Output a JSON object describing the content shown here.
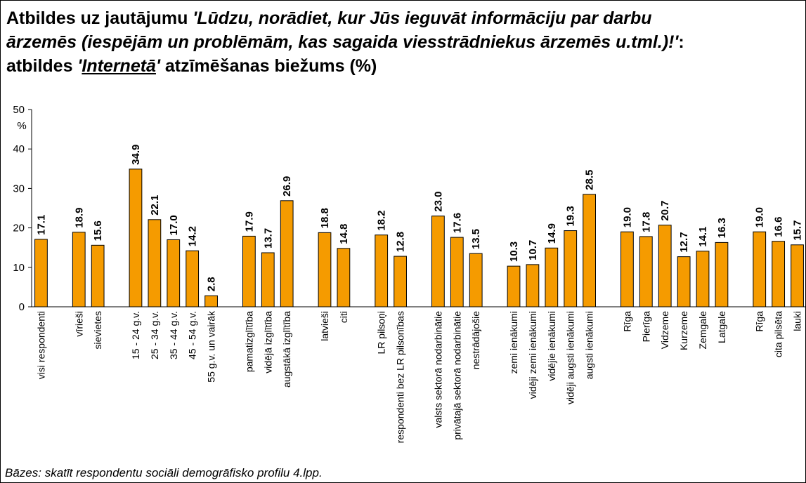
{
  "chart_data": {
    "type": "bar",
    "title": [
      "Atbildes uz jautājumu ",
      "'Lūdzu, norādiet, kur Jūs ieguvāt informāciju par darbu ārzemēs (iespējām un problēmām, kas sagaida viesstrādniekus ārzemēs u.tml.)!'",
      ": atbildes ",
      "'",
      "Internetā",
      "'",
      " atzīmēšanas biežums (%)"
    ],
    "y_axis_label": "%",
    "footnote": "Bāzes: skatīt respondentu sociāli demogrāfisko profilu 4.lpp.",
    "categories": [
      "visi respondenti",
      null,
      "vīrieši",
      "sievietes",
      null,
      "15 - 24 g.v.",
      "25 - 34 g.v.",
      "35 - 44 g.v.",
      "45 - 54 g.v.",
      "55 g.v. un vairāk",
      null,
      "pamatizglītība",
      "vidējā izglītība",
      "augstākā izglītība",
      null,
      "latvieši",
      "citi",
      null,
      "LR pilsoņi",
      "respondenti bez LR pilsonības",
      null,
      "valsts sektorā nodarbinātie",
      "privātajā sektorā nodarbinātie",
      "nestrādājošie",
      null,
      "zemi ienākumi",
      "vidēji zemi ienākumi",
      "vidējie ienākumi",
      "vidēji augsti ienākumi",
      "augsti ienākumi",
      null,
      "Rīga",
      "Pierīga",
      "Vidzeme",
      "Kurzeme",
      "Zemgale",
      "Latgale",
      null,
      "Rīga",
      "cita pilsēta",
      "lauki"
    ],
    "values": [
      17.1,
      null,
      18.9,
      15.6,
      null,
      34.9,
      22.1,
      17.0,
      14.2,
      2.8,
      null,
      17.9,
      13.7,
      26.9,
      null,
      18.8,
      14.8,
      null,
      18.2,
      12.8,
      null,
      23.0,
      17.6,
      13.5,
      null,
      10.3,
      10.7,
      14.9,
      19.3,
      28.5,
      null,
      19.0,
      17.8,
      20.7,
      12.7,
      14.1,
      16.3,
      null,
      19.0,
      16.6,
      15.7
    ],
    "value_labels": [
      "17.1",
      null,
      "18.9",
      "15.6",
      null,
      "34.9",
      "22.1",
      "17.0",
      "14.2",
      "2.8",
      null,
      "17.9",
      "13.7",
      "26.9",
      null,
      "18.8",
      "14.8",
      null,
      "18.2",
      "12.8",
      null,
      "23.0",
      "17.6",
      "13.5",
      null,
      "10.3",
      "10.7",
      "14.9",
      "19.3",
      "28.5",
      null,
      "19.0",
      "17.8",
      "20.7",
      "12.7",
      "14.1",
      "16.3",
      null,
      "19.0",
      "16.6",
      "15.7"
    ],
    "color": "#f59b00",
    "ylim": [
      0,
      50
    ],
    "yticks": [
      0,
      10,
      20,
      30,
      40,
      50
    ]
  }
}
